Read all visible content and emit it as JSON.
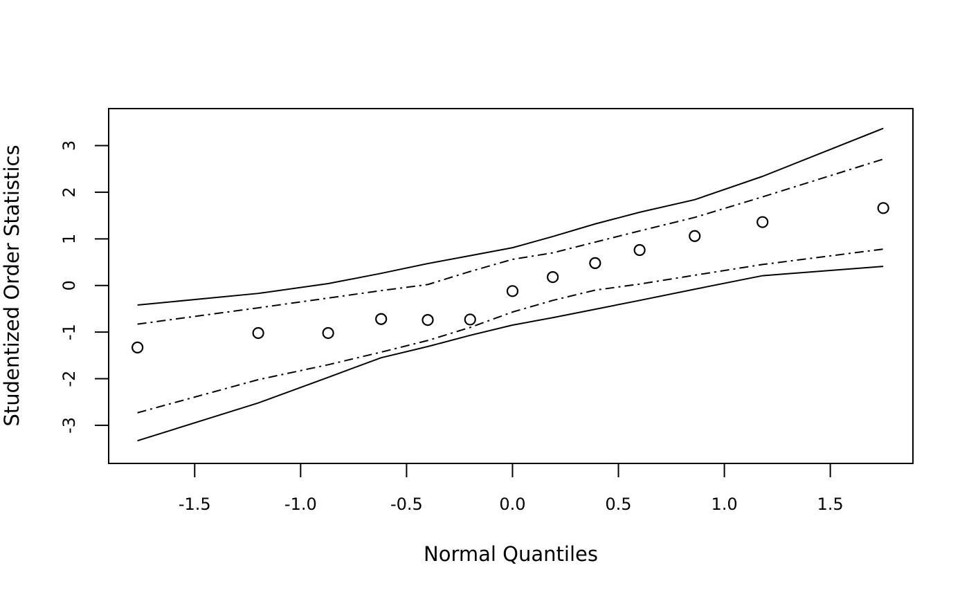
{
  "figure": {
    "background": "#ffffff",
    "foreground": "#000000"
  },
  "chart_data": {
    "type": "scatter",
    "title": "",
    "xlabel": "Normal Quantiles",
    "ylabel": "Studentized Order Statistics",
    "xlim": [
      -1.906,
      1.89
    ],
    "ylim": [
      -3.817,
      3.794
    ],
    "grid": false,
    "legend": null,
    "x_ticks": {
      "values": [
        -1.5,
        -1.0,
        -0.5,
        0.0,
        0.5,
        1.0,
        1.5
      ],
      "labels": [
        "-1.5",
        "-1.0",
        "-0.5",
        "0.0",
        "0.5",
        "1.0",
        "1.5"
      ]
    },
    "y_ticks": {
      "values": [
        -3,
        -2,
        -1,
        0,
        1,
        2,
        3
      ],
      "labels": [
        "-3",
        "-2",
        "-1",
        "0",
        "1",
        "2",
        "3"
      ]
    },
    "points": {
      "marker": "open-circle",
      "x": [
        -1.77,
        -1.2,
        -0.87,
        -0.62,
        -0.4,
        -0.2,
        0.0,
        0.19,
        0.39,
        0.6,
        0.86,
        1.18,
        1.75
      ],
      "y": [
        -1.33,
        -1.02,
        -1.02,
        -0.72,
        -0.74,
        -0.73,
        -0.12,
        0.18,
        0.48,
        0.76,
        1.06,
        1.36,
        1.66
      ]
    },
    "envelope": {
      "x": [
        -1.77,
        -1.2,
        -0.87,
        -0.62,
        -0.4,
        -0.2,
        0.0,
        0.19,
        0.39,
        0.6,
        0.86,
        1.18,
        1.75
      ],
      "series": [
        {
          "name": "upper-solid-band",
          "style": "solid",
          "y": [
            -0.42,
            -0.17,
            0.04,
            0.26,
            0.47,
            0.64,
            0.81,
            1.05,
            1.32,
            1.57,
            1.84,
            2.34,
            3.37
          ]
        },
        {
          "name": "upper-dashdot-band",
          "style": "dashdot",
          "y": [
            -0.83,
            -0.48,
            -0.27,
            -0.11,
            0.02,
            0.3,
            0.56,
            0.7,
            0.93,
            1.17,
            1.46,
            1.9,
            2.71
          ]
        },
        {
          "name": "lower-dashdot-band",
          "style": "dashdot",
          "y": [
            -2.73,
            -2.02,
            -1.7,
            -1.43,
            -1.18,
            -0.9,
            -0.57,
            -0.32,
            -0.1,
            0.03,
            0.22,
            0.45,
            0.78
          ]
        },
        {
          "name": "lower-solid-band",
          "style": "solid",
          "y": [
            -3.33,
            -2.52,
            -1.97,
            -1.55,
            -1.31,
            -1.07,
            -0.85,
            -0.69,
            -0.51,
            -0.32,
            -0.08,
            0.21,
            0.41
          ]
        }
      ]
    },
    "colors": {
      "line": "#000000",
      "marker": "#000000",
      "background": "#ffffff"
    }
  }
}
